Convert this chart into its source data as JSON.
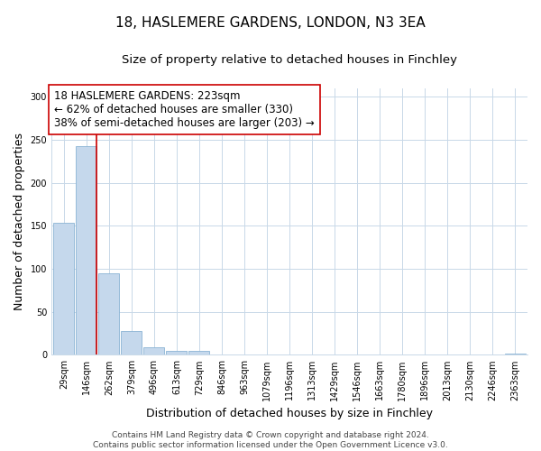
{
  "title": "18, HASLEMERE GARDENS, LONDON, N3 3EA",
  "subtitle": "Size of property relative to detached houses in Finchley",
  "xlabel": "Distribution of detached houses by size in Finchley",
  "ylabel": "Number of detached properties",
  "bin_labels": [
    "29sqm",
    "146sqm",
    "262sqm",
    "379sqm",
    "496sqm",
    "613sqm",
    "729sqm",
    "846sqm",
    "963sqm",
    "1079sqm",
    "1196sqm",
    "1313sqm",
    "1429sqm",
    "1546sqm",
    "1663sqm",
    "1780sqm",
    "1896sqm",
    "2013sqm",
    "2130sqm",
    "2246sqm",
    "2363sqm"
  ],
  "bar_heights": [
    153,
    243,
    95,
    28,
    9,
    5,
    5,
    0,
    0,
    0,
    0,
    0,
    0,
    0,
    0,
    0,
    0,
    0,
    0,
    0,
    1
  ],
  "bar_color": "#c5d8ec",
  "bar_edge_color": "#8ab4d4",
  "property_line_color": "#cc0000",
  "annotation_line1": "18 HASLEMERE GARDENS: 223sqm",
  "annotation_line2": "← 62% of detached houses are smaller (330)",
  "annotation_line3": "38% of semi-detached houses are larger (203) →",
  "ylim": [
    0,
    310
  ],
  "yticks": [
    0,
    50,
    100,
    150,
    200,
    250,
    300
  ],
  "footer_text": "Contains HM Land Registry data © Crown copyright and database right 2024.\nContains public sector information licensed under the Open Government Licence v3.0.",
  "grid_color": "#c8d8e8",
  "title_fontsize": 11,
  "subtitle_fontsize": 9.5,
  "annotation_fontsize": 8.5,
  "tick_fontsize": 7,
  "axis_label_fontsize": 9,
  "footer_fontsize": 6.5
}
